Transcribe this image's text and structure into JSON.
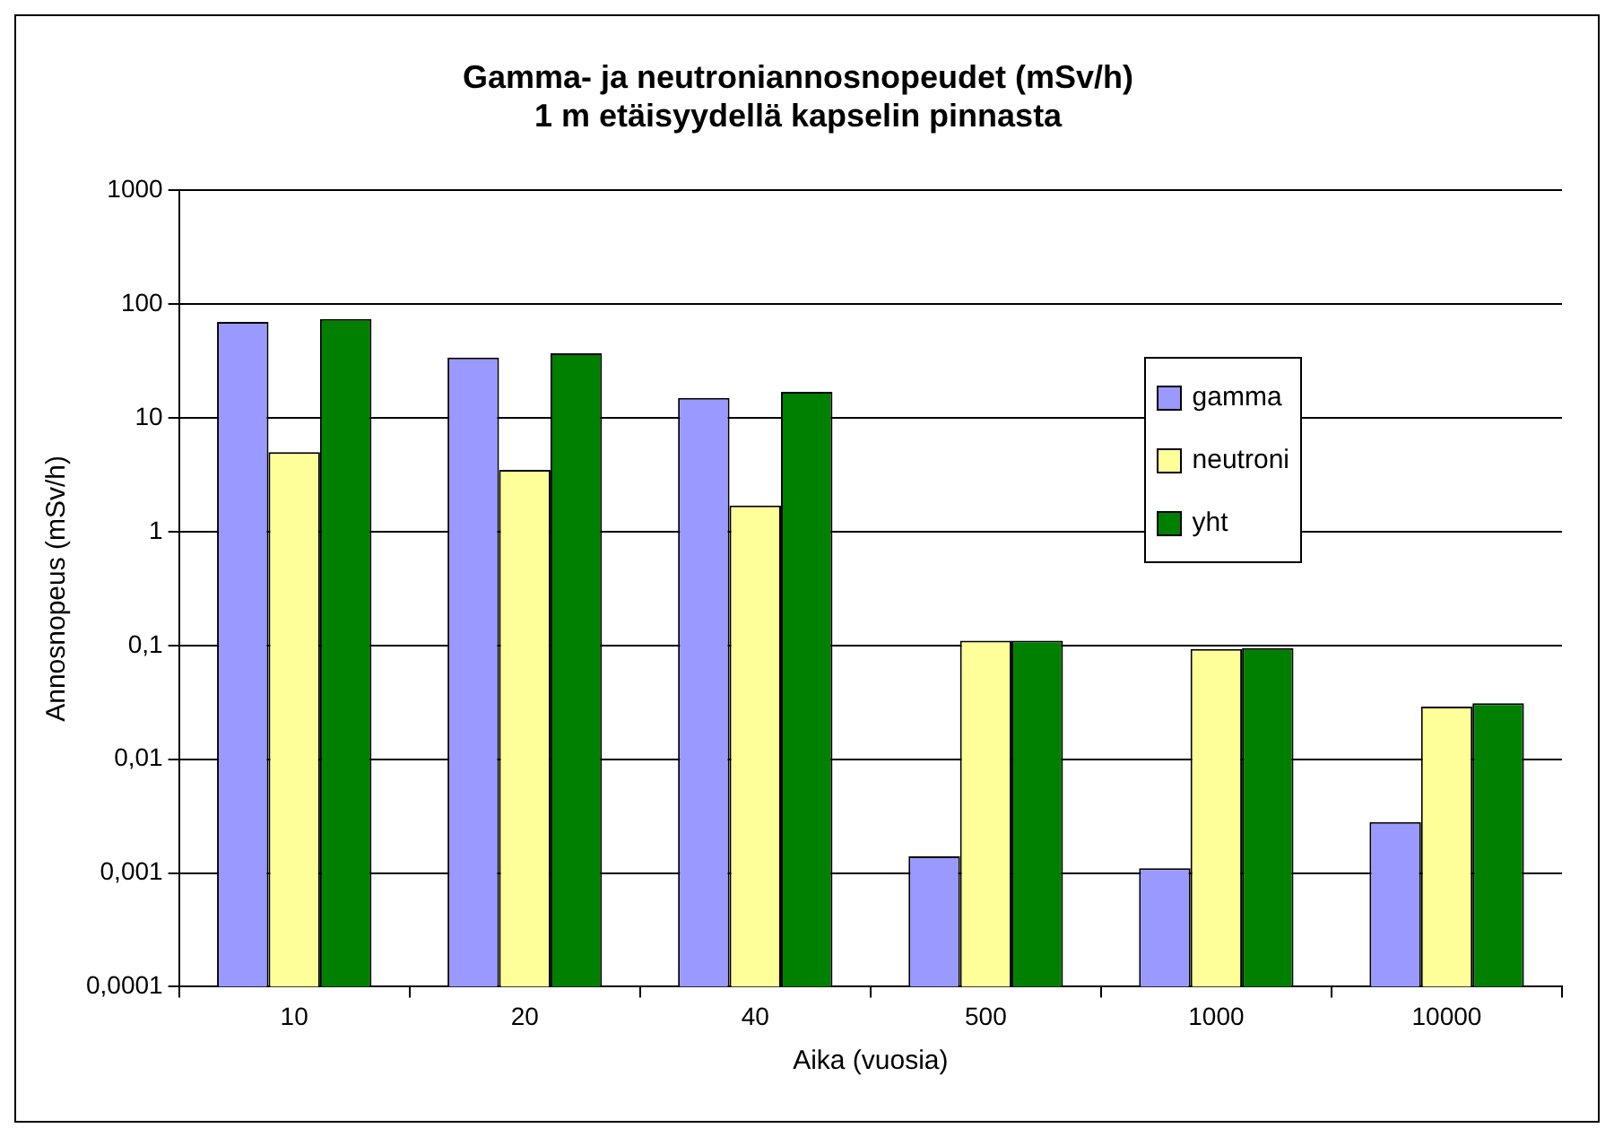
{
  "chart_data": {
    "type": "bar",
    "title": "Gamma- ja neutroniannosnopeudet (mSv/h)\n1 m etäisyydellä kapselin pinnasta",
    "xlabel": "Aika (vuosia)",
    "ylabel": "Annosnopeus (mSv/h)",
    "categories": [
      "10",
      "20",
      "40",
      "500",
      "1000",
      "10000"
    ],
    "series": [
      {
        "name": "gamma",
        "color": "#9999ff",
        "values": [
          70,
          34,
          15,
          0.0014,
          0.0011,
          0.0028
        ]
      },
      {
        "name": "neutroni",
        "color": "#ffff99",
        "values": [
          5,
          3.5,
          1.7,
          0.11,
          0.093,
          0.029
        ]
      },
      {
        "name": "yht",
        "color": "#008000",
        "values": [
          74,
          37,
          17,
          0.11,
          0.095,
          0.031
        ]
      }
    ],
    "log": "y",
    "ylim": [
      0.0001,
      1000
    ],
    "yticks": [
      {
        "value": 0.0001,
        "label": "0,0001"
      },
      {
        "value": 0.001,
        "label": "0,001"
      },
      {
        "value": 0.01,
        "label": "0,01"
      },
      {
        "value": 0.1,
        "label": "0,1"
      },
      1,
      10,
      100,
      1000
    ],
    "grid": "y",
    "legend": "top right"
  }
}
